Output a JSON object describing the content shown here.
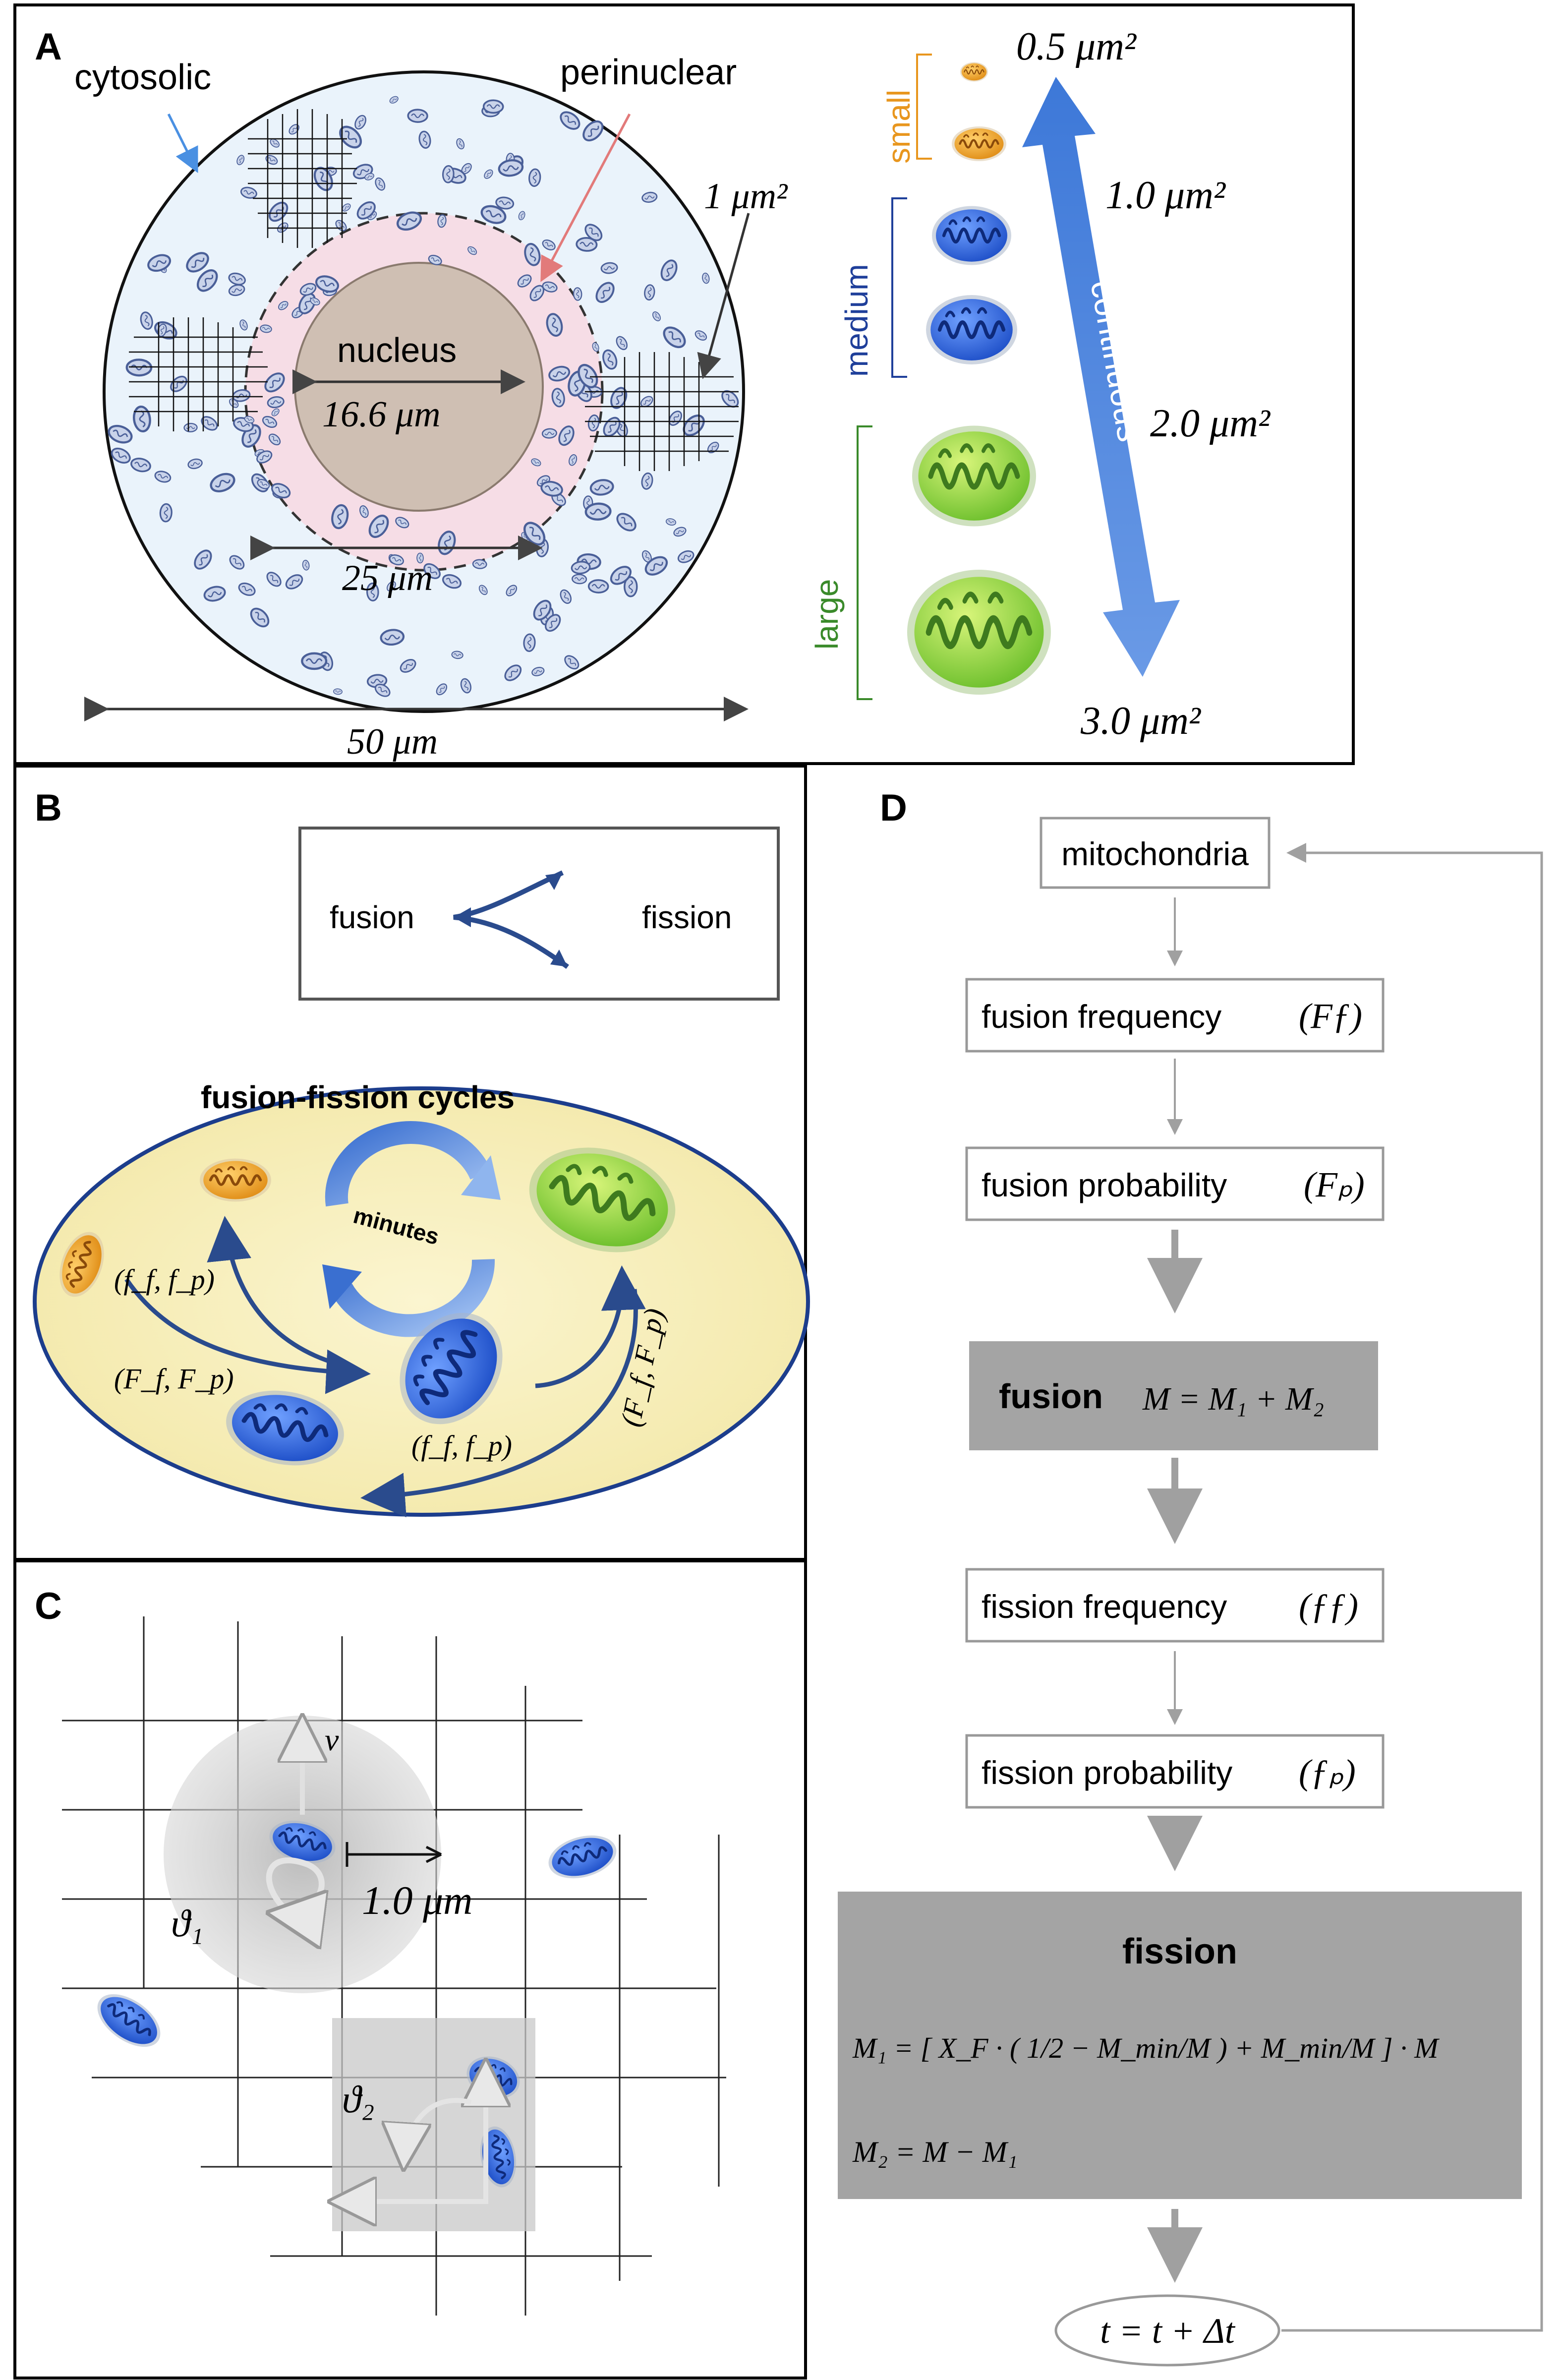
{
  "panel_a": {
    "letter": "A",
    "label_cytosolic": "cytosolic",
    "label_perinuclear": "perinuclear",
    "label_nucleus": "nucleus",
    "dim_nucleus": "16.6 μm",
    "dim_perinuclear": "25 μm",
    "dim_cell": "50 μm",
    "grid_unit": "1 μm²",
    "size_classes": {
      "small": "small",
      "medium": "medium",
      "large": "large"
    },
    "size_ticks": [
      "0.5 μm²",
      "1.0 μm²",
      "2.0 μm²",
      "3.0 μm²"
    ],
    "arrow_label": "continuous",
    "colors": {
      "small": "#e8961e",
      "medium": "#1f3f9a",
      "large": "#3a8a2a",
      "arrow": "#4f86d9",
      "cyto_arrow": "#4a90e2",
      "peri_arrow": "#e27a7a"
    }
  },
  "panel_b": {
    "letter": "B",
    "legend_fusion": "fusion",
    "legend_fission": "fission",
    "cycle_title": "fusion-fission cycles",
    "cycle_time": "minutes",
    "rate_labels": [
      "(f_f, f_p)",
      "(F_f, F_p)",
      "(F_f, F_p)",
      "(f_f, f_p)"
    ]
  },
  "panel_c": {
    "letter": "C",
    "velocity": "v⃗",
    "angle1": "ϑ₁",
    "angle2": "ϑ₂",
    "step": "1.0 μm"
  },
  "panel_d": {
    "letter": "D",
    "box_mitochondria": "mitochondria",
    "box_fusion_freq": "fusion frequency",
    "box_fusion_freq_sym": "(Fƒ)",
    "box_fusion_prob": "fusion probability",
    "box_fusion_prob_sym": "(Fₚ)",
    "box_fusion": "fusion",
    "box_fusion_eq": "M = M₁ + M₂",
    "box_fission_freq": "fission frequency",
    "box_fission_freq_sym": "(ƒƒ)",
    "box_fission_prob": "fission probability",
    "box_fission_prob_sym": "(ƒₚ)",
    "box_fission": "fission",
    "box_fission_eq1": "M₁ = [ X_F · ( 1/2 − M_min/M ) + M_min/M ] · M",
    "box_fission_eq2": "M₂ = M − M₁",
    "box_time": "t = t + Δt"
  }
}
